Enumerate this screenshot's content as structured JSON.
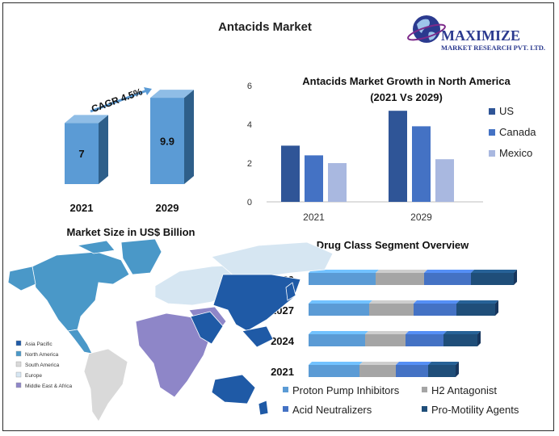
{
  "page": {
    "title": "Antacids Market"
  },
  "logo": {
    "name": "MAXIMIZE",
    "tagline": "MARKET RESEARCH PVT. LTD."
  },
  "colors": {
    "light_blue": "#5b9bd5",
    "mid_blue": "#4472c4",
    "pale_blue": "#a9b8e0",
    "dark_blue": "#2f5597",
    "gray": "#a5a5a5",
    "navy": "#1f4e79",
    "purple": "#8e86c8",
    "lightgray": "#d9d9d9",
    "palecyan": "#d6e6f2",
    "deepblue": "#1f5aa6",
    "teal": "#4a98c8"
  },
  "chart_data": [
    {
      "type": "bar",
      "categories": [
        "2021",
        "2029"
      ],
      "values": [
        7,
        9.9
      ],
      "value_labels": [
        "7",
        "9.9"
      ],
      "annotation": "CAGR 4.5%",
      "xlabel": "Market Size in US$ Billion"
    },
    {
      "type": "bar",
      "title": "Antacids Market Growth in North America",
      "subtitle": "(2021 Vs 2029)",
      "categories": [
        "2021",
        "2029"
      ],
      "series": [
        {
          "name": "US",
          "values": [
            2.9,
            4.7
          ]
        },
        {
          "name": "Canada",
          "values": [
            2.4,
            3.9
          ]
        },
        {
          "name": "Mexico",
          "values": [
            2.0,
            2.2
          ]
        }
      ],
      "yticks": [
        "0",
        "2",
        "4",
        "6"
      ],
      "ylim": [
        0,
        6
      ],
      "legend": "right"
    },
    {
      "type": "bar",
      "orientation": "horizontal",
      "stacked": true,
      "title": "Drug Class Segment Overview",
      "categories": [
        "2029",
        "2027",
        "2024",
        "2021"
      ],
      "series": [
        {
          "name": "Proton Pump Inhibitors",
          "values": [
            83,
            75,
            70,
            63
          ]
        },
        {
          "name": "H2 Antagonist",
          "values": [
            60,
            55,
            50,
            45
          ]
        },
        {
          "name": "Acid Neutralizers",
          "values": [
            58,
            53,
            47,
            40
          ]
        },
        {
          "name": "Pro-Motility Agents",
          "values": [
            53,
            48,
            42,
            34
          ]
        }
      ],
      "legend": "bottom"
    },
    {
      "type": "map",
      "legend": [
        "Asia Pacific",
        "North America",
        "South America",
        "Europe",
        "Middle East & Africa"
      ]
    }
  ]
}
